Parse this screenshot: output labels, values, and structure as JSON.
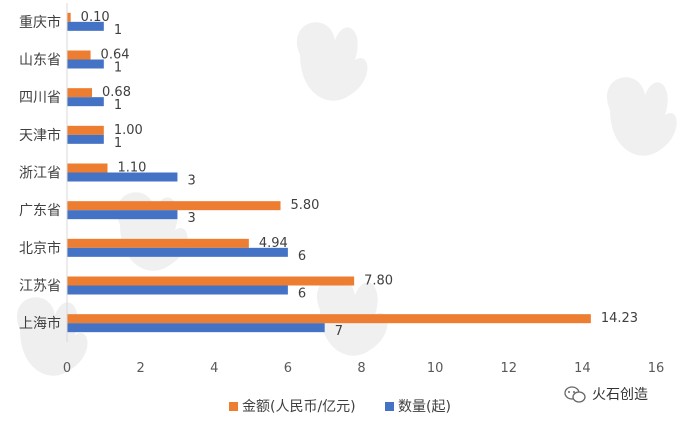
{
  "chart_data": {
    "type": "bar",
    "orientation": "horizontal",
    "categories": [
      "重庆市",
      "山东省",
      "四川省",
      "天津市",
      "浙江省",
      "广东省",
      "北京市",
      "江苏省",
      "上海市"
    ],
    "series": [
      {
        "name": "金额(人民币/亿元)",
        "color": "#ED7D31",
        "values": [
          0.1,
          0.64,
          0.68,
          1.0,
          1.1,
          5.8,
          4.94,
          7.8,
          14.23
        ],
        "labels": [
          "0.10",
          "0.64",
          "0.68",
          "1.00",
          "1.10",
          "5.80",
          "4.94",
          "7.80",
          "14.23"
        ]
      },
      {
        "name": "数量(起)",
        "color": "#4472C4",
        "values": [
          1,
          1,
          1,
          1,
          3,
          3,
          6,
          6,
          7
        ],
        "labels": [
          "1",
          "1",
          "1",
          "1",
          "3",
          "3",
          "6",
          "6",
          "7"
        ]
      }
    ],
    "xlim": [
      0,
      16
    ],
    "xticks": [
      "0",
      "2",
      "4",
      "6",
      "8",
      "10",
      "12",
      "14",
      "16"
    ],
    "grid": false,
    "legend_position": "bottom"
  },
  "branding": {
    "logo_icon": "wechat-icon",
    "label": "火石创造"
  }
}
